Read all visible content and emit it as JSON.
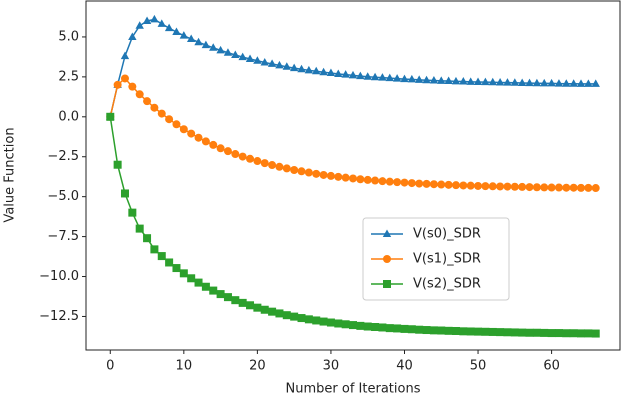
{
  "chart_data": {
    "type": "line",
    "xlabel": "Number of Iterations",
    "ylabel": "Value Function",
    "x": [
      0,
      1,
      2,
      3,
      4,
      5,
      6,
      7,
      8,
      9,
      10,
      11,
      12,
      13,
      14,
      15,
      16,
      17,
      18,
      19,
      20,
      21,
      22,
      23,
      24,
      25,
      26,
      27,
      28,
      29,
      30,
      31,
      32,
      33,
      34,
      35,
      36,
      37,
      38,
      39,
      40,
      41,
      42,
      43,
      44,
      45,
      46,
      47,
      48,
      49,
      50,
      51,
      52,
      53,
      54,
      55,
      56,
      57,
      58,
      59,
      60,
      61,
      62,
      63,
      64,
      65,
      66
    ],
    "series": [
      {
        "name": "V(s0)_SDR",
        "color": "#1f77b4",
        "marker": "triangle",
        "values": [
          0,
          2.0,
          3.8,
          5.0,
          5.7,
          6.0,
          6.1,
          5.82,
          5.55,
          5.31,
          5.08,
          4.87,
          4.67,
          4.49,
          4.32,
          4.16,
          4.01,
          3.87,
          3.74,
          3.62,
          3.51,
          3.4,
          3.31,
          3.22,
          3.13,
          3.05,
          2.98,
          2.91,
          2.85,
          2.79,
          2.74,
          2.68,
          2.64,
          2.59,
          2.55,
          2.51,
          2.48,
          2.45,
          2.42,
          2.39,
          2.36,
          2.34,
          2.31,
          2.29,
          2.27,
          2.25,
          2.24,
          2.22,
          2.21,
          2.19,
          2.18,
          2.17,
          2.16,
          2.15,
          2.14,
          2.13,
          2.12,
          2.11,
          2.1,
          2.09,
          2.09,
          2.08,
          2.07,
          2.07,
          2.06,
          2.06,
          2.06
        ]
      },
      {
        "name": "V(s1)_SDR",
        "color": "#ff7f0e",
        "marker": "circle",
        "values": [
          0,
          2.0,
          2.4,
          1.89,
          1.41,
          0.98,
          0.57,
          0.2,
          -0.15,
          -0.47,
          -0.78,
          -1.05,
          -1.31,
          -1.54,
          -1.76,
          -1.97,
          -2.15,
          -2.33,
          -2.49,
          -2.63,
          -2.77,
          -2.9,
          -3.02,
          -3.13,
          -3.23,
          -3.33,
          -3.41,
          -3.49,
          -3.57,
          -3.64,
          -3.7,
          -3.76,
          -3.81,
          -3.86,
          -3.91,
          -3.95,
          -3.99,
          -4.03,
          -4.06,
          -4.09,
          -4.12,
          -4.15,
          -4.18,
          -4.2,
          -4.22,
          -4.24,
          -4.26,
          -4.28,
          -4.3,
          -4.31,
          -4.33,
          -4.34,
          -4.35,
          -4.36,
          -4.37,
          -4.38,
          -4.39,
          -4.4,
          -4.41,
          -4.42,
          -4.43,
          -4.43,
          -4.44,
          -4.44,
          -4.45,
          -4.45,
          -4.46
        ]
      },
      {
        "name": "V(s2)_SDR",
        "color": "#2ca02c",
        "marker": "square",
        "values": [
          0,
          -3.0,
          -4.8,
          -6.0,
          -7.0,
          -7.6,
          -8.3,
          -8.72,
          -9.12,
          -9.47,
          -9.8,
          -10.11,
          -10.38,
          -10.64,
          -10.88,
          -11.1,
          -11.29,
          -11.48,
          -11.65,
          -11.8,
          -11.95,
          -12.08,
          -12.2,
          -12.31,
          -12.42,
          -12.51,
          -12.6,
          -12.68,
          -12.75,
          -12.82,
          -12.88,
          -12.94,
          -12.99,
          -13.04,
          -13.09,
          -13.13,
          -13.16,
          -13.19,
          -13.23,
          -13.25,
          -13.28,
          -13.3,
          -13.33,
          -13.35,
          -13.37,
          -13.38,
          -13.4,
          -13.41,
          -13.43,
          -13.44,
          -13.45,
          -13.46,
          -13.47,
          -13.48,
          -13.49,
          -13.5,
          -13.51,
          -13.52,
          -13.52,
          -13.53,
          -13.54,
          -13.54,
          -13.55,
          -13.55,
          -13.56,
          -13.56,
          -13.57
        ]
      }
    ],
    "xlim": [
      -3.3,
      69.3
    ],
    "xticks": [
      0,
      10,
      20,
      30,
      40,
      50,
      60
    ],
    "ylim": [
      -14.6,
      7.25
    ],
    "yticks": [
      {
        "value": -12.5,
        "label": "−12.5"
      },
      {
        "value": -10.0,
        "label": "−10.0"
      },
      {
        "value": -7.5,
        "label": "−7.5"
      },
      {
        "value": -5.0,
        "label": "−5.0"
      },
      {
        "value": -2.5,
        "label": "−2.5"
      },
      {
        "value": 0.0,
        "label": "0.0"
      },
      {
        "value": 2.5,
        "label": "2.5"
      },
      {
        "value": 5.0,
        "label": "5.0"
      }
    ],
    "grid": false,
    "legend": "center right"
  }
}
